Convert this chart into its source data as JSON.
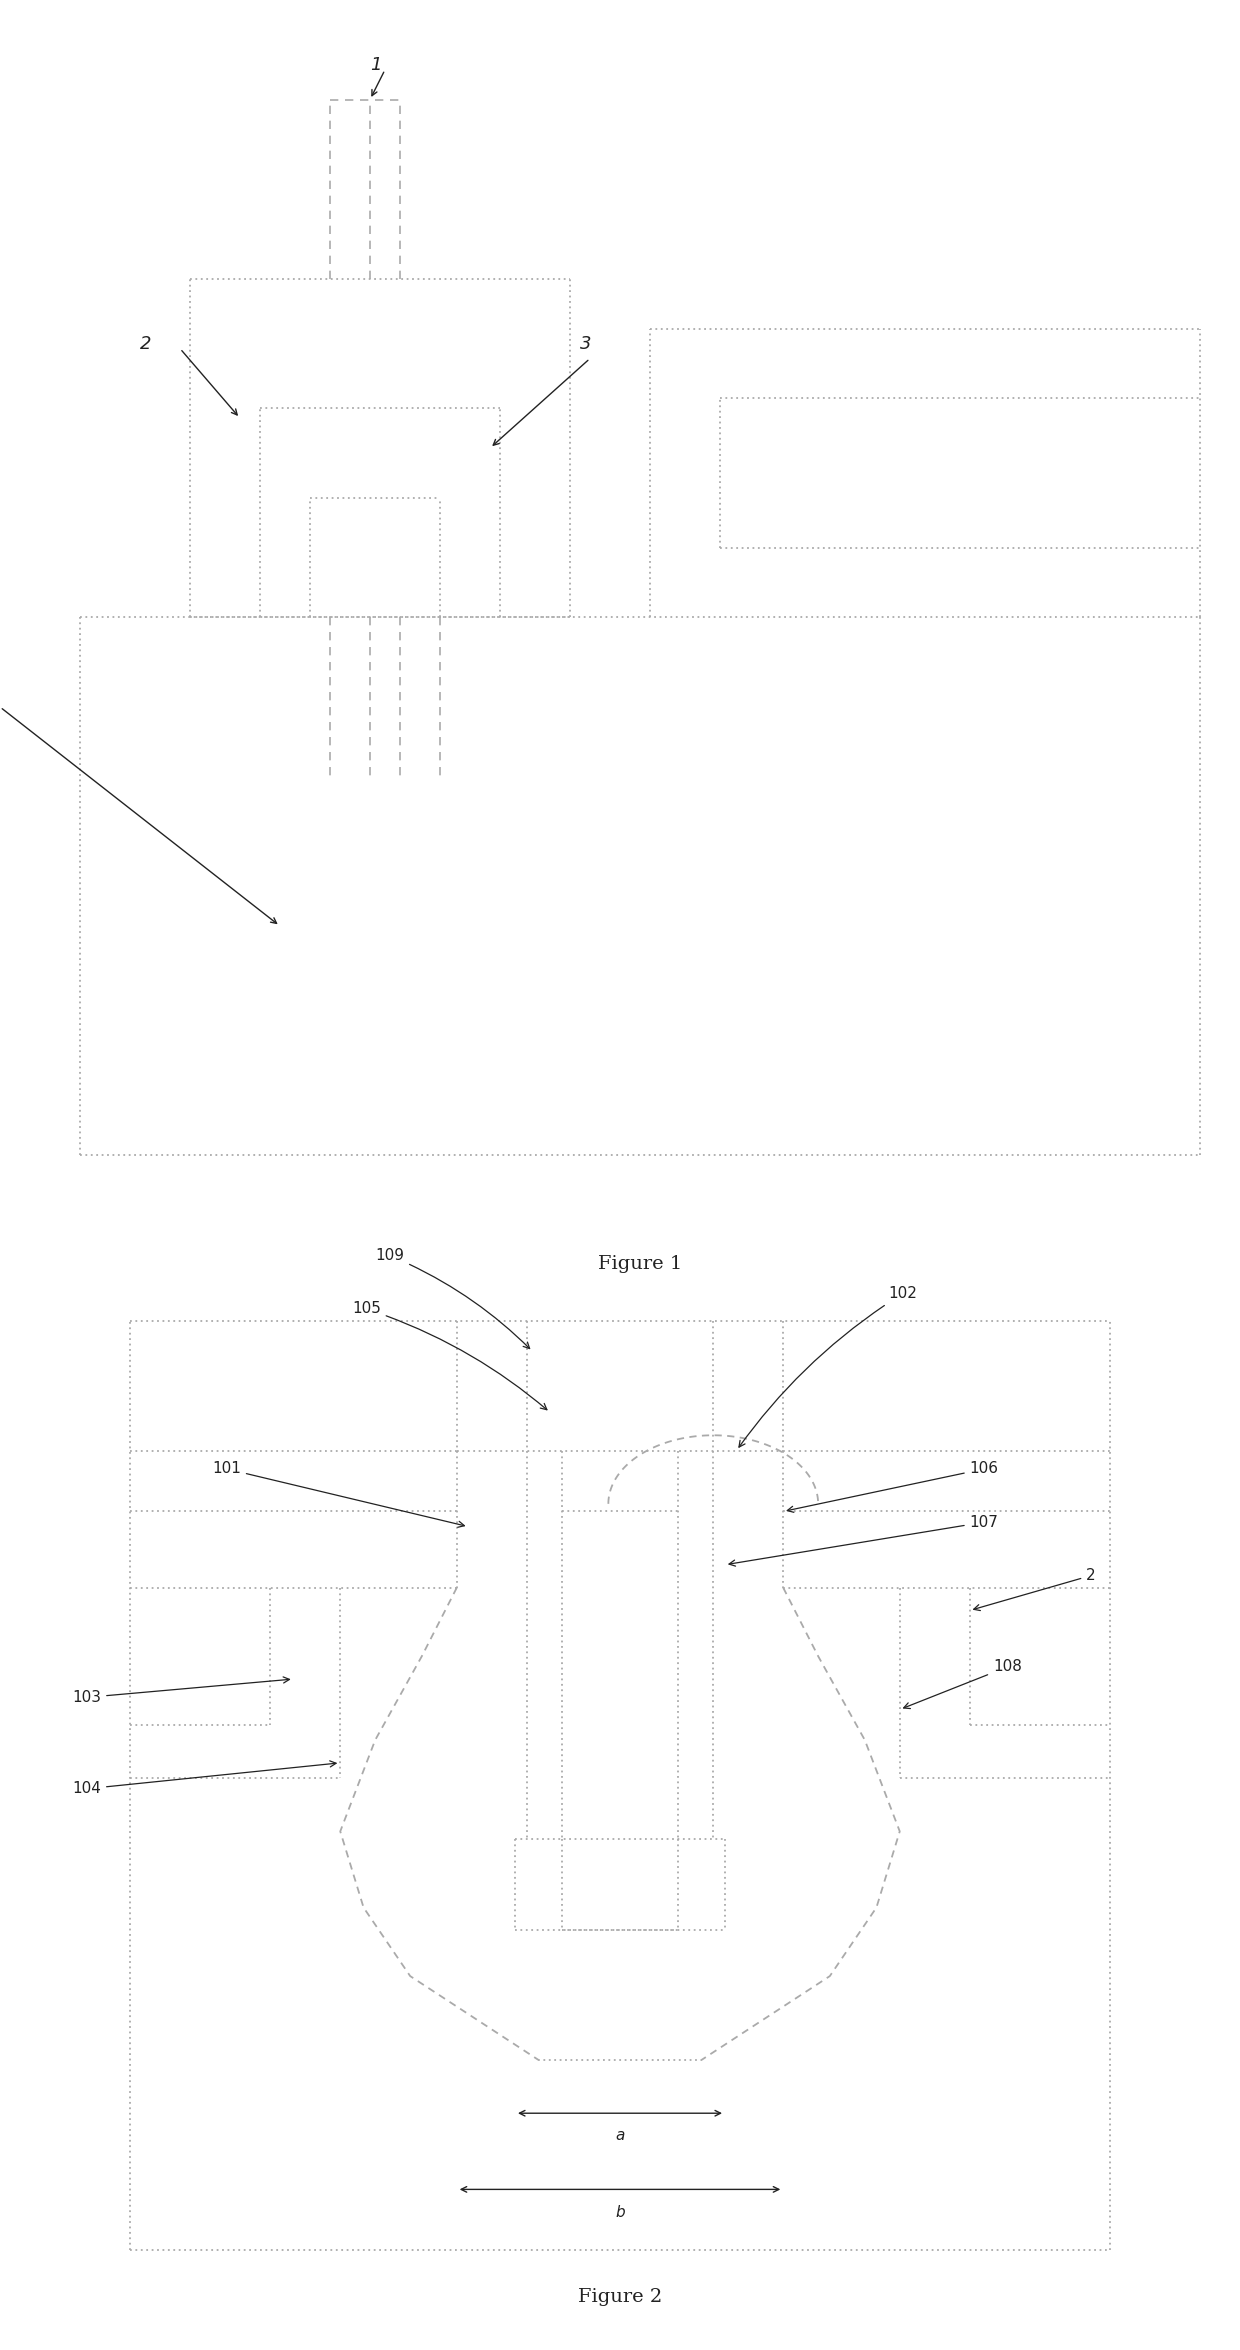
{
  "fig1_caption": "Figure 1",
  "fig2_caption": "Figure 2",
  "bg_color": "#ffffff",
  "lc": "#222222",
  "dc": "#aaaaaa"
}
